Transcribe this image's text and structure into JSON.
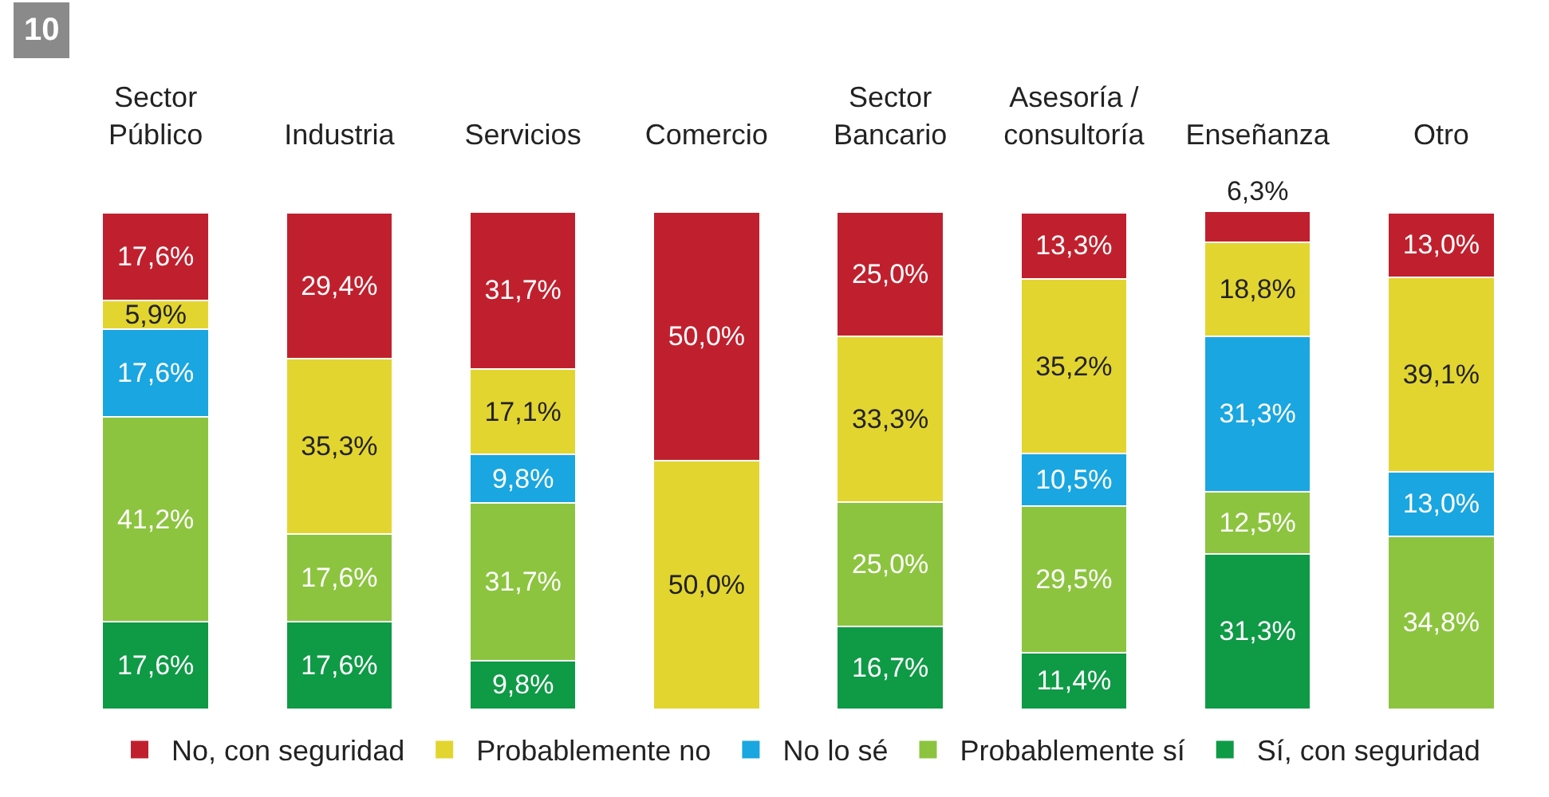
{
  "chart_data": {
    "type": "bar",
    "stacked": true,
    "categories": [
      "Sector\nPúblico",
      "Industria",
      "Servicios",
      "Comercio",
      "Sector\nBancario",
      "Asesoría /\nconsultoría",
      "Enseñanza",
      "Otro"
    ],
    "series": [
      {
        "name": "Sí, con seguridad",
        "color": "#0f9a46",
        "values": [
          17.6,
          17.6,
          9.8,
          null,
          16.7,
          11.4,
          31.3,
          null
        ],
        "value_labels": [
          "17,6%",
          "17,6%",
          "9,8%",
          null,
          "16,7%",
          "11,4%",
          "31,3%",
          null
        ]
      },
      {
        "name": "Probablemente sí",
        "color": "#8cc43f",
        "values": [
          41.2,
          17.6,
          31.7,
          null,
          25.0,
          29.5,
          12.5,
          34.8
        ],
        "value_labels": [
          "41,2%",
          "17,6%",
          "31,7%",
          null,
          "25,0%",
          "29,5%",
          "12,5%",
          "34,8%"
        ]
      },
      {
        "name": "No lo sé",
        "color": "#1aa6e0",
        "values": [
          17.6,
          null,
          9.8,
          null,
          null,
          10.5,
          31.3,
          13.0
        ],
        "value_labels": [
          "17,6%",
          null,
          "9,8%",
          null,
          null,
          "10,5%",
          "31,3%",
          "13,0%"
        ]
      },
      {
        "name": "Probablemente no",
        "color": "#e3d530",
        "values": [
          5.9,
          35.3,
          17.1,
          50.0,
          33.3,
          35.2,
          18.8,
          39.1
        ],
        "value_labels": [
          "5,9%",
          "35,3%",
          "17,1%",
          "50,0%",
          "33,3%",
          "35,2%",
          "18,8%",
          "39,1%"
        ]
      },
      {
        "name": "No, con seguridad",
        "color": "#c0202e",
        "values": [
          17.6,
          29.4,
          31.7,
          50.0,
          25.0,
          13.3,
          6.3,
          13.0
        ],
        "value_labels": [
          "17,6%",
          "29,4%",
          "31,7%",
          "50,0%",
          "25,0%",
          "13,3%",
          "6,3%",
          "13,0%"
        ]
      }
    ],
    "annotations": [
      "10"
    ],
    "legend": "bottom"
  }
}
